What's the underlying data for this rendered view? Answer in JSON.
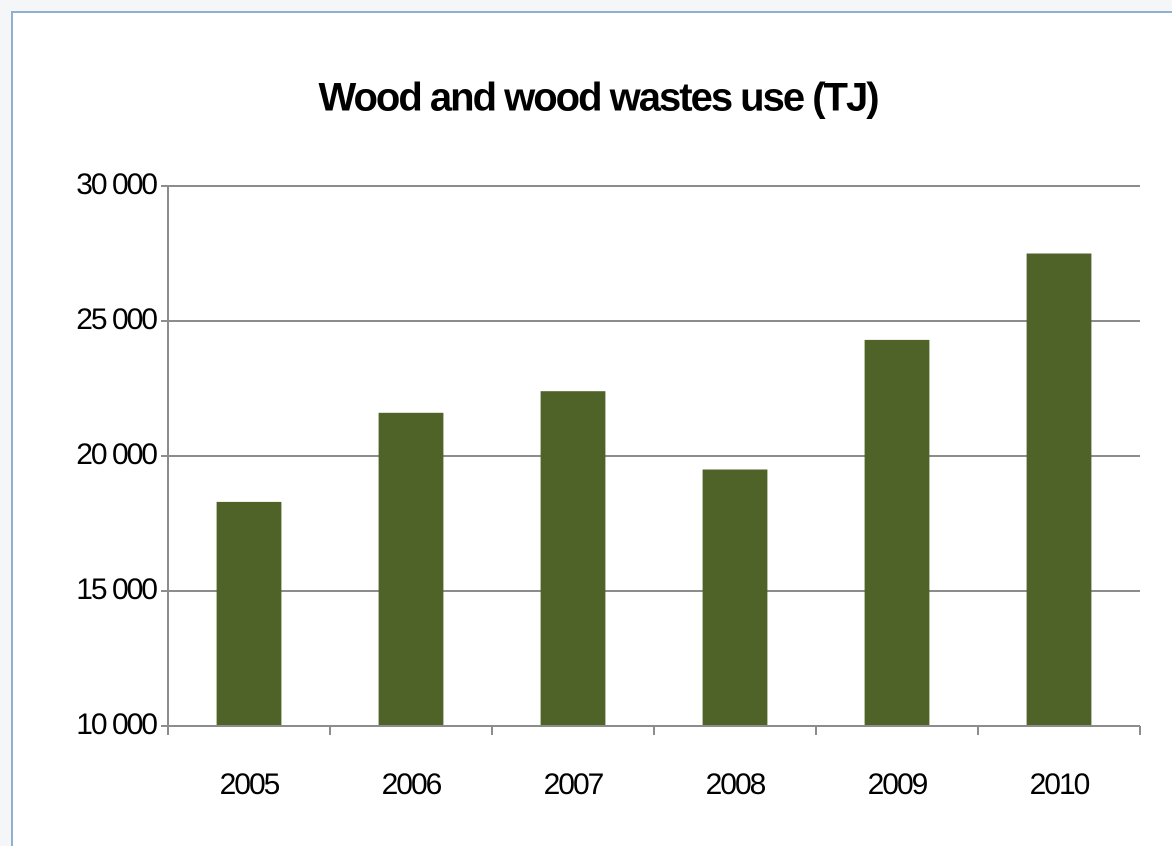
{
  "chart_data": {
    "type": "bar",
    "title": "Wood  and wood wastes use (TJ)",
    "categories": [
      "2005",
      "2006",
      "2007",
      "2008",
      "2009",
      "2010"
    ],
    "values": [
      18300,
      21600,
      22400,
      19500,
      24300,
      27500
    ],
    "color": "#4f6228",
    "ylim": [
      10000,
      30000
    ],
    "yticks": [
      {
        "value": 10000,
        "label": "10 000"
      },
      {
        "value": 15000,
        "label": "15 000"
      },
      {
        "value": 20000,
        "label": "20 000"
      },
      {
        "value": 25000,
        "label": "25 000"
      },
      {
        "value": 30000,
        "label": "30 000"
      }
    ],
    "grid": true
  }
}
